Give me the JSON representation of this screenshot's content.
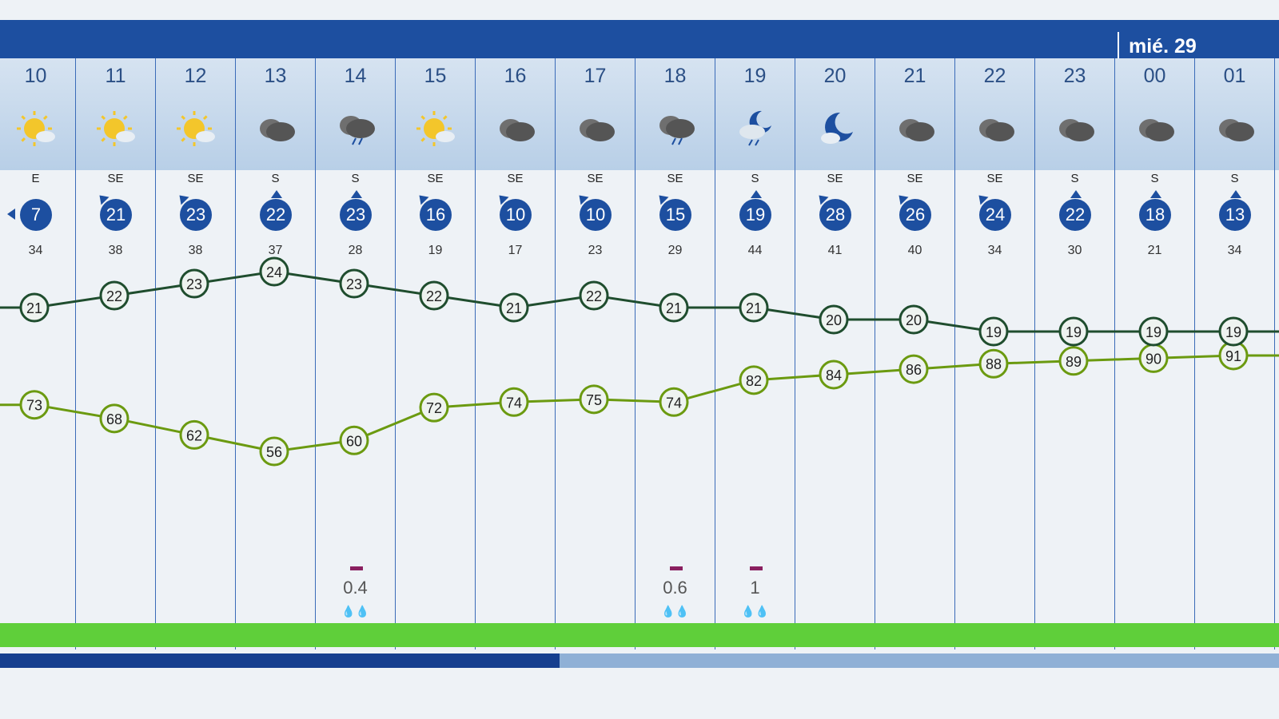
{
  "header": {
    "day_label": "mié. 29"
  },
  "colors": {
    "accent": "#1d4fa0",
    "temp_line": "#1f4d2e",
    "humidity_line": "#6b9a10",
    "rain_bar": "#5fcf3a"
  },
  "hours": [
    {
      "hour": "10",
      "icon": "sun-icon",
      "wind_dir": "E",
      "wind": "7",
      "gust": "34",
      "temp": 21,
      "hum": 73,
      "rain": ""
    },
    {
      "hour": "11",
      "icon": "sun-icon",
      "wind_dir": "SE",
      "wind": "21",
      "gust": "38",
      "temp": 22,
      "hum": 68,
      "rain": ""
    },
    {
      "hour": "12",
      "icon": "sun-icon",
      "wind_dir": "SE",
      "wind": "23",
      "gust": "38",
      "temp": 23,
      "hum": 62,
      "rain": ""
    },
    {
      "hour": "13",
      "icon": "cloud-icon",
      "wind_dir": "S",
      "wind": "22",
      "gust": "37",
      "temp": 24,
      "hum": 56,
      "rain": ""
    },
    {
      "hour": "14",
      "icon": "rain-cloud-icon",
      "wind_dir": "S",
      "wind": "23",
      "gust": "28",
      "temp": 23,
      "hum": 60,
      "rain": "0.4"
    },
    {
      "hour": "15",
      "icon": "sun-icon",
      "wind_dir": "SE",
      "wind": "16",
      "gust": "19",
      "temp": 22,
      "hum": 72,
      "rain": ""
    },
    {
      "hour": "16",
      "icon": "cloud-icon",
      "wind_dir": "SE",
      "wind": "10",
      "gust": "17",
      "temp": 21,
      "hum": 74,
      "rain": ""
    },
    {
      "hour": "17",
      "icon": "cloud-icon",
      "wind_dir": "SE",
      "wind": "10",
      "gust": "23",
      "temp": 22,
      "hum": 75,
      "rain": ""
    },
    {
      "hour": "18",
      "icon": "rain-cloud-icon",
      "wind_dir": "SE",
      "wind": "15",
      "gust": "29",
      "temp": 21,
      "hum": 74,
      "rain": "0.6"
    },
    {
      "hour": "19",
      "icon": "moon-rain-icon",
      "wind_dir": "S",
      "wind": "19",
      "gust": "44",
      "temp": 21,
      "hum": 82,
      "rain": "1"
    },
    {
      "hour": "20",
      "icon": "moon-icon",
      "wind_dir": "SE",
      "wind": "28",
      "gust": "41",
      "temp": 20,
      "hum": 84,
      "rain": ""
    },
    {
      "hour": "21",
      "icon": "cloud-icon",
      "wind_dir": "SE",
      "wind": "26",
      "gust": "40",
      "temp": 20,
      "hum": 86,
      "rain": ""
    },
    {
      "hour": "22",
      "icon": "cloud-icon",
      "wind_dir": "SE",
      "wind": "24",
      "gust": "34",
      "temp": 19,
      "hum": 88,
      "rain": ""
    },
    {
      "hour": "23",
      "icon": "cloud-icon",
      "wind_dir": "S",
      "wind": "22",
      "gust": "30",
      "temp": 19,
      "hum": 89,
      "rain": ""
    },
    {
      "hour": "00",
      "icon": "cloud-icon",
      "wind_dir": "S",
      "wind": "18",
      "gust": "21",
      "temp": 19,
      "hum": 90,
      "rain": ""
    },
    {
      "hour": "01",
      "icon": "cloud-icon",
      "wind_dir": "S",
      "wind": "13",
      "gust": "34",
      "temp": 19,
      "hum": 91,
      "rain": ""
    }
  ]
}
